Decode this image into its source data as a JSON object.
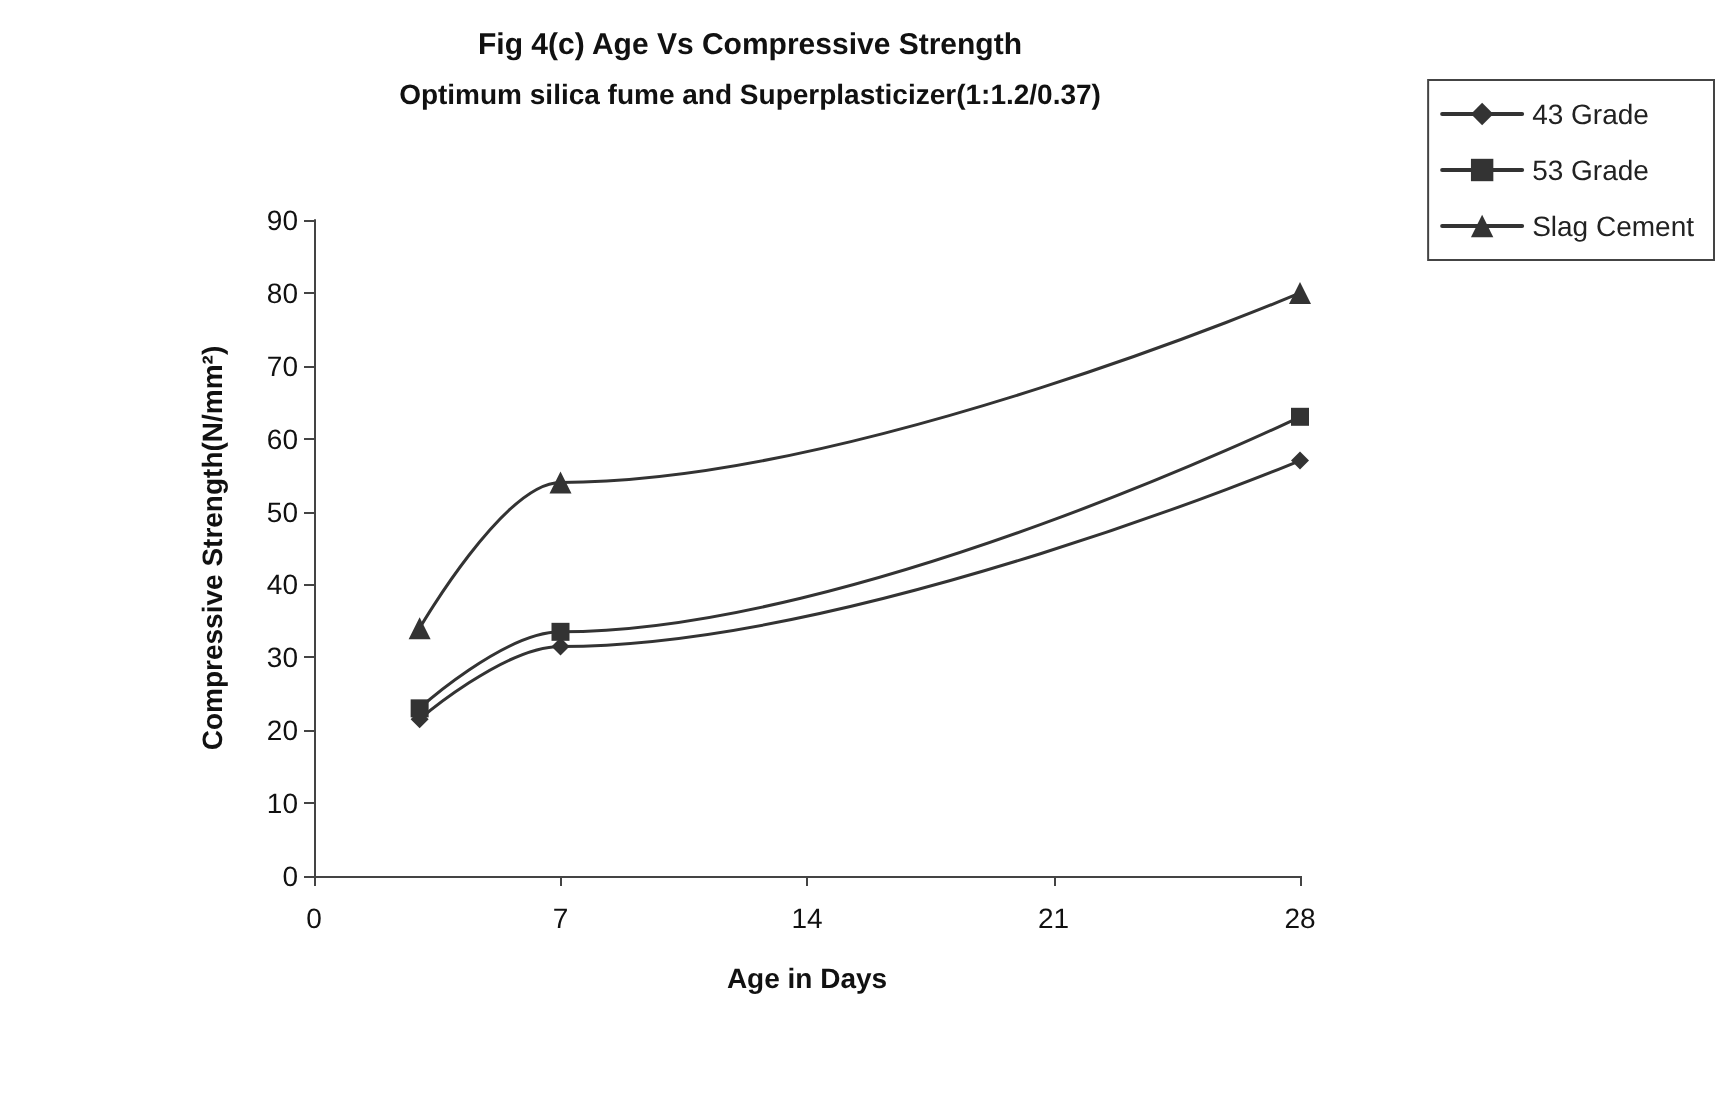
{
  "chart_data": {
    "type": "line",
    "title": "Fig 4(c) Age Vs Compressive Strength",
    "subtitle": "Optimum silica fume and Superplasticizer(1:1.2/0.37)",
    "xlabel": "Age in Days",
    "ylabel": "Compressive Strength(N/mm²)",
    "x": [
      3,
      7,
      28
    ],
    "series": [
      {
        "name": "43 Grade",
        "color": "#333333",
        "marker": "diamond",
        "values": [
          21.5,
          31.5,
          57
        ]
      },
      {
        "name": "53 Grade",
        "color": "#333333",
        "marker": "square",
        "values": [
          23,
          33.5,
          63
        ]
      },
      {
        "name": "Slag Cement",
        "color": "#333333",
        "marker": "triangle",
        "values": [
          34,
          54,
          80
        ]
      }
    ],
    "xlim": [
      0,
      28
    ],
    "xticks": [
      0,
      7,
      14,
      21,
      28
    ],
    "ylim": [
      0,
      90
    ],
    "yticks": [
      0,
      10,
      20,
      30,
      40,
      50,
      60,
      70,
      80,
      90
    ],
    "grid": false,
    "legend": "top right",
    "line_style": "solid"
  }
}
